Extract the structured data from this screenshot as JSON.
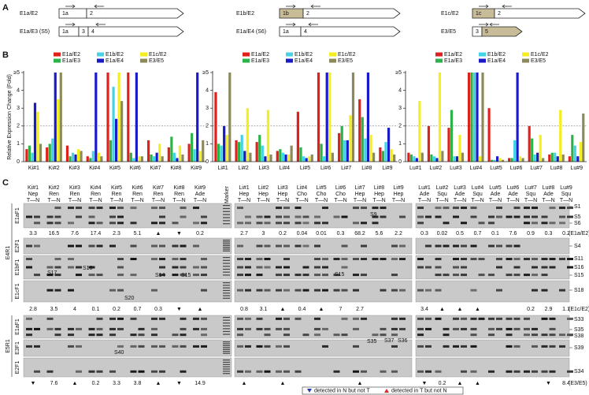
{
  "panel_labels": [
    "A",
    "B",
    "C"
  ],
  "panel_a": {
    "transcripts": [
      {
        "label": "E1a/E2",
        "exons": [
          "1a",
          "2"
        ]
      },
      {
        "label": "E1a/E3 (S5)",
        "exons": [
          "1a",
          "3",
          "4"
        ]
      },
      {
        "label": "E1b/E2",
        "exons": [
          "1b",
          "2"
        ]
      },
      {
        "label": "E1a/E4 (S6)",
        "exons": [
          "1a",
          "4"
        ]
      },
      {
        "label": "E1c/E2",
        "exons": [
          "1c",
          "2"
        ]
      },
      {
        "label": "E3/E5",
        "exons": [
          "3",
          "5"
        ]
      }
    ]
  },
  "chart_data": [
    {
      "type": "bar",
      "ylabel": "Relative Expression Change (Fold)",
      "categories": [
        "Ki#1",
        "Ki#2",
        "Ki#3",
        "Ki#4",
        "Ki#5",
        "Ki#6",
        "Ki#7",
        "Ki#8",
        "Ki#9"
      ],
      "ylim": [
        0,
        5
      ],
      "yticks": [
        0,
        1,
        2,
        3,
        4,
        {
          "value": 5,
          "label": "≥5"
        }
      ],
      "reference_line": 2,
      "series": [
        {
          "name": "E1a/E2",
          "color": "#e0201b",
          "values": [
            0.7,
            0.8,
            0.9,
            0.3,
            5,
            5,
            1.2,
            0.8,
            1.0
          ]
        },
        {
          "name": "E1a/E3",
          "color": "#2bb34a",
          "values": [
            0.9,
            1.0,
            0.3,
            0.2,
            1.2,
            0.5,
            0.4,
            1.4,
            1.6
          ]
        },
        {
          "name": "E1b/E2",
          "color": "#41d4e8",
          "values": [
            0.5,
            1.3,
            0.5,
            0.6,
            4.2,
            0.2,
            0.3,
            0.5,
            0.7
          ]
        },
        {
          "name": "E1a/E4",
          "color": "#1a1ac8",
          "values": [
            3.3,
            5,
            0.4,
            5,
            2.4,
            5,
            0.5,
            0.2,
            5
          ]
        },
        {
          "name": "E1c/E2",
          "color": "#f5ee1f",
          "values": [
            2.8,
            3.5,
            0.7,
            0.5,
            5,
            0.3,
            1.0,
            0.9,
            0.6
          ]
        },
        {
          "name": "E3/E5",
          "color": "#8c8a5a",
          "values": [
            1.0,
            5,
            0.6,
            0.3,
            3.4,
            0.3,
            0.3,
            0.4,
            1.2
          ]
        }
      ]
    },
    {
      "type": "bar",
      "categories": [
        "Li#1",
        "Li#2",
        "Li#3",
        "Li#4",
        "Li#5",
        "Li#6",
        "Li#7",
        "Li#8",
        "Li#9"
      ],
      "ylim": [
        0,
        5
      ],
      "yticks": [
        0,
        1,
        2,
        3,
        4,
        {
          "value": 5,
          "label": "≥5"
        }
      ],
      "reference_line": 2,
      "series": [
        {
          "name": "E1a/E2",
          "color": "#e0201b",
          "values": [
            3.9,
            1.2,
            1.1,
            0.6,
            2.8,
            5,
            1.6,
            3.5,
            0.8
          ]
        },
        {
          "name": "E1a/E3",
          "color": "#2bb34a",
          "values": [
            1.0,
            1.1,
            1.5,
            0.7,
            0.8,
            1.0,
            2.0,
            2.5,
            0.6
          ]
        },
        {
          "name": "E1b/E2",
          "color": "#41d4e8",
          "values": [
            0.9,
            1.5,
            0.9,
            0.5,
            0.3,
            0.3,
            1.2,
            1.3,
            1.1
          ]
        },
        {
          "name": "E1a/E4",
          "color": "#1a1ac8",
          "values": [
            2.0,
            0.6,
            0.3,
            0.4,
            0.2,
            5,
            1.2,
            5,
            1.9
          ]
        },
        {
          "name": "E1c/E2",
          "color": "#f5ee1f",
          "values": [
            1.5,
            3.0,
            2.9,
            0.4,
            0.3,
            5,
            2.6,
            1.5,
            0.7
          ]
        },
        {
          "name": "E3/E5",
          "color": "#8c8a5a",
          "values": [
            5,
            0.5,
            0.4,
            0.9,
            0.4,
            0.5,
            5,
            0.5,
            0.4
          ]
        }
      ]
    },
    {
      "type": "bar",
      "categories": [
        "Lu#1",
        "Lu#2",
        "Lu#3",
        "Lu#4",
        "Lu#5",
        "Lu#6",
        "Lu#7",
        "Lu#8",
        "Lu#9"
      ],
      "ylim": [
        0,
        5
      ],
      "yticks": [
        0,
        1,
        2,
        3,
        4,
        {
          "value": 5,
          "label": "≥5"
        }
      ],
      "reference_line": 2,
      "series": [
        {
          "name": "E1a/E2",
          "color": "#e0201b",
          "values": [
            0.5,
            2.0,
            1.9,
            5,
            3.0,
            0.2,
            2.0,
            0.4,
            0.3
          ]
        },
        {
          "name": "E1a/E3",
          "color": "#2bb34a",
          "values": [
            0.4,
            0.4,
            2.9,
            5,
            0.1,
            0.2,
            1.3,
            0.5,
            1.5
          ]
        },
        {
          "name": "E1b/E2",
          "color": "#41d4e8",
          "values": [
            0.3,
            0.3,
            0.3,
            5,
            0.1,
            1.2,
            0.4,
            0.5,
            0.9
          ]
        },
        {
          "name": "E1a/E4",
          "color": "#1a1ac8",
          "values": [
            0.2,
            0.2,
            0.3,
            5,
            0.3,
            5,
            0.5,
            0.3,
            0.3
          ]
        },
        {
          "name": "E1c/E2",
          "color": "#f5ee1f",
          "values": [
            3.4,
            5,
            1.5,
            0.3,
            0.2,
            0.3,
            1.5,
            2.9,
            1.1
          ]
        },
        {
          "name": "E3/E5",
          "color": "#8c8a5a",
          "values": [
            0.5,
            0.6,
            0.5,
            5,
            0.1,
            0.2,
            0.2,
            0.4,
            2.7
          ]
        }
      ]
    }
  ],
  "panel_c": {
    "samples": [
      {
        "name": "Ki#1",
        "type": "Nep"
      },
      {
        "name": "Ki#2",
        "type": "Ren"
      },
      {
        "name": "Ki#3",
        "type": "Ren"
      },
      {
        "name": "Ki#4",
        "type": "Ren"
      },
      {
        "name": "Ki#5",
        "type": "Ren"
      },
      {
        "name": "Ki#6",
        "type": "Ren"
      },
      {
        "name": "Ki#7",
        "type": "Ren"
      },
      {
        "name": "Ki#8",
        "type": "Ren"
      },
      {
        "name": "Ki#9",
        "type": "Ade"
      },
      {
        "name": "Li#1",
        "type": "Hep"
      },
      {
        "name": "Li#2",
        "type": "Hep"
      },
      {
        "name": "Li#3",
        "type": "Hep"
      },
      {
        "name": "Li#4",
        "type": "Cho"
      },
      {
        "name": "Li#5",
        "type": "Cho"
      },
      {
        "name": "Li#6",
        "type": "Cho"
      },
      {
        "name": "Li#7",
        "type": "Hep"
      },
      {
        "name": "Li#8",
        "type": "Hep"
      },
      {
        "name": "Li#9",
        "type": "Hep"
      },
      {
        "name": "Lu#1",
        "type": "Ade"
      },
      {
        "name": "Lu#2",
        "type": "Squ"
      },
      {
        "name": "Lu#3",
        "type": "Ade"
      },
      {
        "name": "Lu#4",
        "type": "Squ"
      },
      {
        "name": "Lu#5",
        "type": "Ade"
      },
      {
        "name": "Lu#6",
        "type": "Ade"
      },
      {
        "name": "Lu#7",
        "type": "Squ"
      },
      {
        "name": "Lu#8",
        "type": "Ade"
      },
      {
        "name": "Lu#9",
        "type": "Squ"
      }
    ],
    "lane_label": "T—N",
    "marker": "Marker",
    "primer_groups": [
      {
        "label": "E4R1",
        "rows": [
          "E1aF1",
          "E2F1",
          "E1bF1",
          "E1cF1"
        ]
      },
      {
        "label": "E5R1",
        "rows": [
          "E1aF1",
          "E3F1",
          "E2F1"
        ]
      }
    ],
    "band_labels": [
      "S1",
      "S5",
      "S6",
      "S4",
      "S11",
      "S16",
      "S15",
      "S18",
      "S33",
      "S35",
      "S38",
      "S39",
      "S34"
    ],
    "inner_labels": [
      "S9",
      "S17",
      "S16",
      "S14",
      "S15",
      "S20",
      "S15",
      "S35",
      "S37",
      "S36",
      "S40"
    ],
    "ratios": [
      {
        "label": "(E1a/E2)",
        "values": [
          3.3,
          16.5,
          7.6,
          17.4,
          2.3,
          5.1,
          "▲",
          "▼",
          0.2,
          2.7,
          3.0,
          0.2,
          0.04,
          0.01,
          0.3,
          68.2,
          5.6,
          2.2,
          0.3,
          0.02,
          0.5,
          0.7,
          0.1,
          7.6,
          0.9,
          0.3,
          0.2
        ]
      },
      {
        "label": "(E1c/E2)",
        "values": [
          2.8,
          3.5,
          4.0,
          0.1,
          0.2,
          0.7,
          0.3,
          "▼",
          "▲",
          0.8,
          3.1,
          "▲",
          0.4,
          "▲",
          7.0,
          2.7,
          null,
          null,
          3.4,
          "▲",
          "▲",
          "▲",
          null,
          null,
          0.2,
          2.9,
          1.1
        ]
      },
      {
        "label": "(E3/E5)",
        "values": [
          "▼",
          7.6,
          "▲",
          0.2,
          3.3,
          3.8,
          "▲",
          "▼",
          14.9,
          "▲",
          null,
          "▲",
          null,
          null,
          null,
          "▲",
          null,
          null,
          "▼",
          0.2,
          "▲",
          "▲",
          null,
          null,
          null,
          "▼",
          8.4
        ]
      }
    ],
    "legend": [
      "detected in N but not T",
      "detected in T but not N"
    ]
  }
}
